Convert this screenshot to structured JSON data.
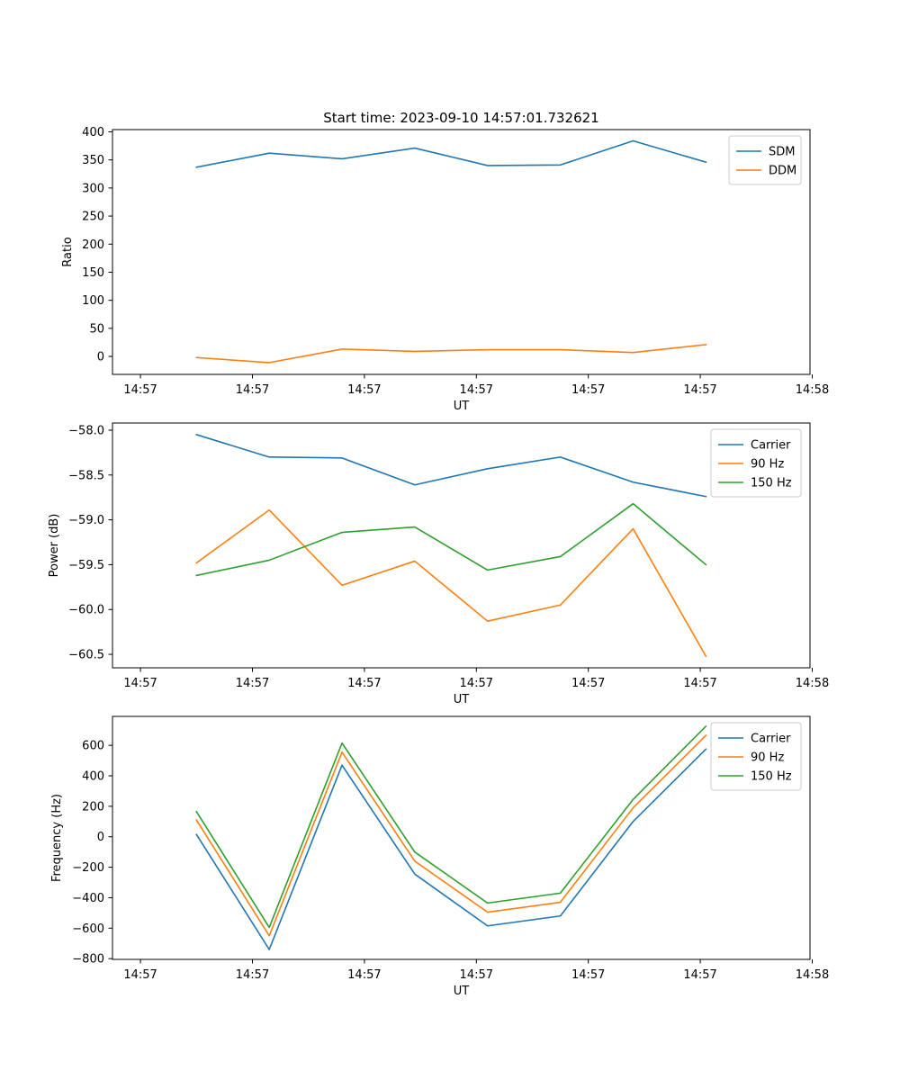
{
  "figure": {
    "title": "Start time: 2023-09-10 14:57:01.732621"
  },
  "chart_data": [
    {
      "type": "line",
      "title": "Start time: 2023-09-10 14:57:01.732621",
      "xlabel": "UT",
      "ylabel": "Ratio",
      "x": [
        0.5,
        1.15,
        1.8,
        2.45,
        3.1,
        3.75,
        4.4,
        5.05
      ],
      "xlim": [
        -0.25,
        5.98
      ],
      "xticks": [
        0,
        1,
        2,
        3,
        4,
        5,
        6
      ],
      "xtick_labels": [
        "14:57",
        "14:57",
        "14:57",
        "14:57",
        "14:57",
        "14:57",
        "14:58"
      ],
      "ylim": [
        -32,
        404
      ],
      "yticks": [
        0,
        50,
        100,
        150,
        200,
        250,
        300,
        350,
        400
      ],
      "ytick_labels": [
        "0",
        "50",
        "100",
        "150",
        "200",
        "250",
        "300",
        "350",
        "400"
      ],
      "grid": false,
      "legend": "top-right",
      "series": [
        {
          "name": "SDM",
          "color": "#1f77b4",
          "values": [
            337,
            362,
            352,
            371,
            340,
            341,
            384,
            346
          ]
        },
        {
          "name": "DDM",
          "color": "#ff7f0e",
          "values": [
            -2,
            -11,
            13,
            9,
            12,
            12,
            7,
            21
          ]
        }
      ]
    },
    {
      "type": "line",
      "title": "",
      "xlabel": "UT",
      "ylabel": "Power (dB)",
      "x": [
        0.5,
        1.15,
        1.8,
        2.45,
        3.1,
        3.75,
        4.4,
        5.05
      ],
      "xlim": [
        -0.25,
        5.98
      ],
      "xticks": [
        0,
        1,
        2,
        3,
        4,
        5,
        6
      ],
      "xtick_labels": [
        "14:57",
        "14:57",
        "14:57",
        "14:57",
        "14:57",
        "14:57",
        "14:58"
      ],
      "ylim": [
        -60.65,
        -57.92
      ],
      "yticks": [
        -58.0,
        -58.5,
        -59.0,
        -59.5,
        -60.0,
        -60.5
      ],
      "ytick_labels": [
        "−58.0",
        "−58.5",
        "−59.0",
        "−59.5",
        "−60.0",
        "−60.5"
      ],
      "grid": false,
      "legend": "top-right",
      "series": [
        {
          "name": "Carrier",
          "color": "#1f77b4",
          "values": [
            -58.05,
            -58.3,
            -58.31,
            -58.61,
            -58.43,
            -58.3,
            -58.58,
            -58.74
          ]
        },
        {
          "name": "90 Hz",
          "color": "#ff7f0e",
          "values": [
            -59.48,
            -58.89,
            -59.73,
            -59.46,
            -60.13,
            -59.95,
            -59.1,
            -60.52
          ]
        },
        {
          "name": "150 Hz",
          "color": "#2ca02c",
          "values": [
            -59.62,
            -59.45,
            -59.14,
            -59.08,
            -59.56,
            -59.41,
            -58.82,
            -59.5
          ]
        }
      ]
    },
    {
      "type": "line",
      "title": "",
      "xlabel": "UT",
      "ylabel": "Frequency (Hz)",
      "x": [
        0.5,
        1.15,
        1.8,
        2.45,
        3.1,
        3.75,
        4.4,
        5.05
      ],
      "xlim": [
        -0.25,
        5.98
      ],
      "xticks": [
        0,
        1,
        2,
        3,
        4,
        5,
        6
      ],
      "xtick_labels": [
        "14:57",
        "14:57",
        "14:57",
        "14:57",
        "14:57",
        "14:57",
        "14:58"
      ],
      "ylim": [
        -805,
        790
      ],
      "yticks": [
        -800,
        -600,
        -400,
        -200,
        0,
        200,
        400,
        600
      ],
      "ytick_labels": [
        "−800",
        "−600",
        "−400",
        "−200",
        "0",
        "200",
        "400",
        "600"
      ],
      "grid": false,
      "legend": "top-right",
      "series": [
        {
          "name": "Carrier",
          "color": "#1f77b4",
          "values": [
            15,
            -740,
            470,
            -245,
            -585,
            -520,
            100,
            575
          ]
        },
        {
          "name": "90 Hz",
          "color": "#ff7f0e",
          "values": [
            110,
            -650,
            555,
            -160,
            -495,
            -430,
            190,
            665
          ]
        },
        {
          "name": "150 Hz",
          "color": "#2ca02c",
          "values": [
            165,
            -595,
            615,
            -100,
            -435,
            -370,
            245,
            725
          ]
        }
      ]
    }
  ]
}
